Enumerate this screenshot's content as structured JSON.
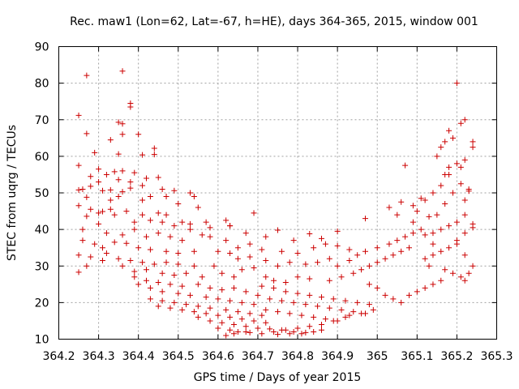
{
  "chart_data": {
    "type": "scatter",
    "title": "Rec. maw1 (Lon=62, Lat=-67, h=HE), days 364-365, 2015, window 001",
    "xlabel": "GPS time / Days of year 2015",
    "ylabel": "STEC from uqrg / TECUs",
    "xlim": [
      364.2,
      365.3
    ],
    "ylim": [
      10,
      90
    ],
    "x_ticks": [
      364.2,
      364.3,
      364.4,
      364.5,
      364.6,
      364.7,
      364.8,
      364.9,
      365.0,
      365.1,
      365.2,
      365.3
    ],
    "x_tick_labels": [
      "364.2",
      "364.3",
      "364.4",
      "364.5",
      "364.6",
      "364.7",
      "364.8",
      "364.9",
      "365",
      "365.1",
      "365.2",
      "365.3"
    ],
    "y_ticks": [
      10,
      20,
      30,
      40,
      50,
      60,
      70,
      80,
      90
    ],
    "y_tick_labels": [
      "10",
      "20",
      "30",
      "40",
      "50",
      "60",
      "70",
      "80",
      "90"
    ],
    "grid": true,
    "marker": "+",
    "color": "#cc0000",
    "points": [
      [
        364.25,
        71.2
      ],
      [
        364.27,
        82.1
      ],
      [
        364.36,
        83.3
      ],
      [
        364.27,
        66.2
      ],
      [
        364.38,
        74.5
      ],
      [
        364.38,
        73.5
      ],
      [
        364.35,
        69.3
      ],
      [
        364.36,
        68.9
      ],
      [
        364.4,
        66.0
      ],
      [
        364.36,
        66.0
      ],
      [
        364.29,
        61.0
      ],
      [
        364.33,
        64.5
      ],
      [
        364.44,
        62.2
      ],
      [
        364.44,
        60.5
      ],
      [
        364.41,
        60.4
      ],
      [
        364.35,
        60.6
      ],
      [
        364.25,
        57.5
      ],
      [
        364.3,
        56.5
      ],
      [
        364.32,
        55.0
      ],
      [
        364.34,
        55.8
      ],
      [
        364.36,
        56.0
      ],
      [
        364.39,
        55.5
      ],
      [
        364.28,
        54.5
      ],
      [
        364.3,
        53.0
      ],
      [
        364.35,
        53.6
      ],
      [
        364.38,
        53.0
      ],
      [
        364.42,
        54.0
      ],
      [
        364.45,
        54.2
      ],
      [
        364.26,
        51.0
      ],
      [
        364.28,
        51.8
      ],
      [
        364.31,
        50.6
      ],
      [
        364.33,
        50.8
      ],
      [
        364.36,
        50.3
      ],
      [
        364.38,
        51.3
      ],
      [
        364.41,
        52.0
      ],
      [
        364.46,
        51.0
      ],
      [
        364.49,
        50.6
      ],
      [
        364.53,
        50.0
      ],
      [
        364.54,
        49.0
      ],
      [
        364.25,
        50.8
      ],
      [
        364.27,
        48.8
      ],
      [
        364.33,
        48.0
      ],
      [
        364.35,
        49.0
      ],
      [
        364.41,
        48.0
      ],
      [
        364.43,
        49.0
      ],
      [
        364.47,
        49.0
      ],
      [
        364.5,
        47.0
      ],
      [
        364.55,
        46.0
      ],
      [
        364.25,
        46.5
      ],
      [
        364.28,
        45.5
      ],
      [
        364.31,
        44.9
      ],
      [
        364.33,
        45.5
      ],
      [
        364.37,
        45.0
      ],
      [
        364.41,
        44.0
      ],
      [
        364.45,
        44.5
      ],
      [
        364.47,
        44.0
      ],
      [
        364.51,
        42.0
      ],
      [
        364.53,
        41.5
      ],
      [
        364.57,
        42.0
      ],
      [
        364.62,
        42.5
      ],
      [
        364.27,
        43.6
      ],
      [
        364.3,
        44.5
      ],
      [
        364.34,
        44.0
      ],
      [
        364.39,
        42.0
      ],
      [
        364.43,
        42.5
      ],
      [
        364.46,
        42.0
      ],
      [
        364.49,
        41.0
      ],
      [
        364.53,
        40.0
      ],
      [
        364.58,
        40.5
      ],
      [
        364.63,
        41.0
      ],
      [
        364.26,
        40.0
      ],
      [
        364.3,
        41.5
      ],
      [
        364.32,
        39.0
      ],
      [
        364.36,
        38.5
      ],
      [
        364.39,
        40.0
      ],
      [
        364.42,
        38.0
      ],
      [
        364.45,
        39.0
      ],
      [
        364.48,
        38.0
      ],
      [
        364.51,
        37.0
      ],
      [
        364.56,
        38.5
      ],
      [
        364.26,
        37.0
      ],
      [
        364.29,
        36.0
      ],
      [
        364.31,
        35.0
      ],
      [
        364.34,
        36.5
      ],
      [
        364.37,
        36.2
      ],
      [
        364.4,
        35.0
      ],
      [
        364.43,
        34.5
      ],
      [
        364.47,
        34.0
      ],
      [
        364.5,
        33.5
      ],
      [
        364.54,
        34.0
      ],
      [
        364.25,
        33.0
      ],
      [
        364.28,
        32.5
      ],
      [
        364.32,
        33.5
      ],
      [
        364.35,
        32.0
      ],
      [
        364.38,
        31.5
      ],
      [
        364.41,
        31.0
      ],
      [
        364.44,
        30.5
      ],
      [
        364.47,
        31.0
      ],
      [
        364.5,
        30.5
      ],
      [
        364.54,
        30.0
      ],
      [
        364.25,
        28.3
      ],
      [
        364.27,
        30.0
      ],
      [
        364.31,
        31.5
      ],
      [
        364.36,
        30.0
      ],
      [
        364.39,
        28.5
      ],
      [
        364.42,
        29.0
      ],
      [
        364.46,
        28.0
      ],
      [
        364.49,
        27.5
      ],
      [
        364.52,
        28.0
      ],
      [
        364.56,
        27.0
      ],
      [
        364.39,
        27.0
      ],
      [
        364.42,
        26.0
      ],
      [
        364.45,
        25.5
      ],
      [
        364.48,
        25.0
      ],
      [
        364.51,
        24.5
      ],
      [
        364.55,
        25.0
      ],
      [
        364.58,
        24.0
      ],
      [
        364.61,
        23.5
      ],
      [
        364.64,
        24.0
      ],
      [
        364.67,
        23.0
      ],
      [
        364.4,
        25.0
      ],
      [
        364.43,
        24.0
      ],
      [
        364.46,
        23.0
      ],
      [
        364.5,
        22.5
      ],
      [
        364.53,
        22.0
      ],
      [
        364.57,
        21.5
      ],
      [
        364.6,
        21.0
      ],
      [
        364.63,
        20.5
      ],
      [
        364.66,
        20.0
      ],
      [
        364.69,
        19.5
      ],
      [
        364.43,
        21.0
      ],
      [
        364.46,
        20.5
      ],
      [
        364.49,
        20.0
      ],
      [
        364.52,
        19.5
      ],
      [
        364.55,
        19.0
      ],
      [
        364.58,
        18.5
      ],
      [
        364.62,
        18.0
      ],
      [
        364.65,
        17.5
      ],
      [
        364.68,
        17.0
      ],
      [
        364.71,
        16.5
      ],
      [
        364.45,
        19.0
      ],
      [
        364.48,
        18.5
      ],
      [
        364.51,
        18.0
      ],
      [
        364.54,
        17.5
      ],
      [
        364.57,
        17.0
      ],
      [
        364.6,
        16.5
      ],
      [
        364.63,
        16.0
      ],
      [
        364.66,
        15.5
      ],
      [
        364.69,
        15.0
      ],
      [
        364.72,
        14.5
      ],
      [
        364.55,
        16.0
      ],
      [
        364.58,
        15.0
      ],
      [
        364.61,
        14.5
      ],
      [
        364.64,
        14.0
      ],
      [
        364.67,
        13.5
      ],
      [
        364.7,
        13.0
      ],
      [
        364.73,
        12.8
      ],
      [
        364.76,
        12.5
      ],
      [
        364.79,
        12.0
      ],
      [
        364.82,
        11.8
      ],
      [
        364.6,
        13.0
      ],
      [
        364.63,
        12.5
      ],
      [
        364.65,
        12.0
      ],
      [
        364.68,
        11.8
      ],
      [
        364.71,
        11.5
      ],
      [
        364.75,
        11.3
      ],
      [
        364.78,
        11.5
      ],
      [
        364.81,
        11.5
      ],
      [
        364.84,
        12.0
      ],
      [
        364.86,
        12.5
      ],
      [
        364.62,
        11.0
      ],
      [
        364.64,
        11.5
      ],
      [
        364.67,
        12.0
      ],
      [
        364.74,
        12.0
      ],
      [
        364.77,
        12.5
      ],
      [
        364.8,
        13.0
      ],
      [
        364.83,
        13.5
      ],
      [
        364.86,
        14.0
      ],
      [
        364.89,
        15.0
      ],
      [
        364.92,
        16.0
      ],
      [
        364.59,
        30.0
      ],
      [
        364.61,
        28.0
      ],
      [
        364.64,
        27.0
      ],
      [
        364.66,
        29.0
      ],
      [
        364.69,
        29.5
      ],
      [
        364.72,
        27.0
      ],
      [
        364.74,
        26.0
      ],
      [
        364.77,
        25.5
      ],
      [
        364.8,
        27.0
      ],
      [
        364.83,
        26.5
      ],
      [
        364.6,
        34.0
      ],
      [
        364.63,
        33.5
      ],
      [
        364.65,
        32.0
      ],
      [
        364.68,
        32.5
      ],
      [
        364.72,
        31.5
      ],
      [
        364.75,
        30.0
      ],
      [
        364.78,
        31.0
      ],
      [
        364.82,
        30.5
      ],
      [
        364.85,
        31.0
      ],
      [
        364.88,
        32.0
      ],
      [
        364.58,
        38.0
      ],
      [
        364.62,
        37.0
      ],
      [
        364.65,
        35.0
      ],
      [
        364.68,
        36.0
      ],
      [
        364.71,
        34.5
      ],
      [
        364.76,
        34.0
      ],
      [
        364.8,
        33.5
      ],
      [
        364.84,
        35.0
      ],
      [
        364.87,
        36.0
      ],
      [
        364.9,
        35.5
      ],
      [
        364.69,
        44.5
      ],
      [
        364.75,
        39.8
      ],
      [
        364.83,
        38.8
      ],
      [
        364.9,
        39.5
      ],
      [
        364.63,
        41.0
      ],
      [
        364.67,
        39.0
      ],
      [
        364.72,
        38.0
      ],
      [
        364.79,
        37.0
      ],
      [
        364.86,
        37.5
      ],
      [
        364.93,
        34.5
      ],
      [
        364.7,
        22.0
      ],
      [
        364.73,
        21.0
      ],
      [
        364.76,
        20.5
      ],
      [
        364.79,
        20.0
      ],
      [
        364.82,
        19.5
      ],
      [
        364.85,
        19.0
      ],
      [
        364.88,
        18.5
      ],
      [
        364.91,
        18.0
      ],
      [
        364.94,
        17.5
      ],
      [
        364.97,
        17.0
      ],
      [
        364.71,
        24.5
      ],
      [
        364.74,
        24.0
      ],
      [
        364.77,
        23.0
      ],
      [
        364.8,
        22.5
      ],
      [
        364.83,
        22.0
      ],
      [
        364.86,
        21.5
      ],
      [
        364.89,
        21.0
      ],
      [
        364.92,
        20.5
      ],
      [
        364.95,
        20.0
      ],
      [
        364.98,
        19.5
      ],
      [
        364.72,
        18.0
      ],
      [
        364.75,
        17.5
      ],
      [
        364.78,
        17.0
      ],
      [
        364.81,
        16.5
      ],
      [
        364.84,
        16.0
      ],
      [
        364.87,
        15.5
      ],
      [
        364.9,
        15.0
      ],
      [
        364.93,
        16.5
      ],
      [
        364.96,
        17.0
      ],
      [
        364.99,
        18.0
      ],
      [
        364.88,
        26.0
      ],
      [
        364.91,
        27.0
      ],
      [
        364.94,
        28.0
      ],
      [
        364.96,
        29.0
      ],
      [
        364.98,
        30.0
      ],
      [
        365.0,
        31.0
      ],
      [
        365.02,
        32.0
      ],
      [
        365.04,
        33.0
      ],
      [
        365.06,
        34.0
      ],
      [
        365.08,
        35.0
      ],
      [
        364.9,
        30.0
      ],
      [
        364.93,
        31.5
      ],
      [
        364.95,
        33.0
      ],
      [
        364.97,
        34.0
      ],
      [
        365.0,
        35.0
      ],
      [
        365.03,
        36.0
      ],
      [
        365.05,
        37.0
      ],
      [
        365.07,
        38.0
      ],
      [
        365.09,
        39.0
      ],
      [
        365.11,
        40.0
      ],
      [
        364.98,
        25.0
      ],
      [
        365.0,
        24.0
      ],
      [
        365.02,
        22.0
      ],
      [
        365.04,
        21.0
      ],
      [
        365.06,
        20.0
      ],
      [
        365.08,
        22.0
      ],
      [
        365.1,
        23.0
      ],
      [
        365.12,
        24.0
      ],
      [
        365.14,
        25.0
      ],
      [
        365.16,
        26.0
      ],
      [
        364.97,
        43.0
      ],
      [
        365.05,
        44.0
      ],
      [
        365.07,
        57.5
      ],
      [
        365.09,
        42.0
      ],
      [
        365.1,
        45.0
      ],
      [
        365.12,
        48.0
      ],
      [
        365.14,
        50.0
      ],
      [
        365.16,
        52.0
      ],
      [
        365.18,
        55.0
      ],
      [
        365.2,
        58.0
      ],
      [
        365.03,
        46.0
      ],
      [
        365.06,
        47.5
      ],
      [
        365.09,
        46.5
      ],
      [
        365.11,
        48.5
      ],
      [
        365.13,
        43.5
      ],
      [
        365.15,
        44.0
      ],
      [
        365.17,
        47.0
      ],
      [
        365.19,
        50.0
      ],
      [
        365.21,
        52.5
      ],
      [
        365.23,
        50.5
      ],
      [
        365.12,
        38.5
      ],
      [
        365.14,
        39.0
      ],
      [
        365.16,
        40.0
      ],
      [
        365.18,
        41.0
      ],
      [
        365.2,
        42.0
      ],
      [
        365.22,
        44.0
      ],
      [
        365.24,
        41.5
      ],
      [
        365.24,
        40.5
      ],
      [
        365.22,
        39.0
      ],
      [
        365.2,
        37.0
      ],
      [
        365.12,
        32.0
      ],
      [
        365.14,
        33.0
      ],
      [
        365.16,
        34.0
      ],
      [
        365.18,
        35.0
      ],
      [
        365.2,
        36.0
      ],
      [
        365.22,
        33.0
      ],
      [
        365.24,
        30.0
      ],
      [
        365.23,
        28.0
      ],
      [
        365.21,
        27.0
      ],
      [
        365.19,
        28.0
      ],
      [
        365.15,
        60.0
      ],
      [
        365.16,
        62.5
      ],
      [
        365.17,
        64.0
      ],
      [
        365.18,
        67.0
      ],
      [
        365.19,
        65.0
      ],
      [
        365.21,
        69.0
      ],
      [
        365.22,
        70.0
      ],
      [
        365.24,
        64.0
      ],
      [
        365.24,
        62.5
      ],
      [
        365.2,
        80.0
      ],
      [
        365.17,
        55.0
      ],
      [
        365.18,
        57.0
      ],
      [
        365.21,
        57.0
      ],
      [
        365.22,
        59.0
      ],
      [
        365.23,
        51.0
      ],
      [
        365.22,
        48.0
      ],
      [
        365.14,
        36.0
      ],
      [
        365.13,
        30.0
      ],
      [
        365.17,
        29.0
      ],
      [
        365.22,
        26.0
      ]
    ]
  }
}
